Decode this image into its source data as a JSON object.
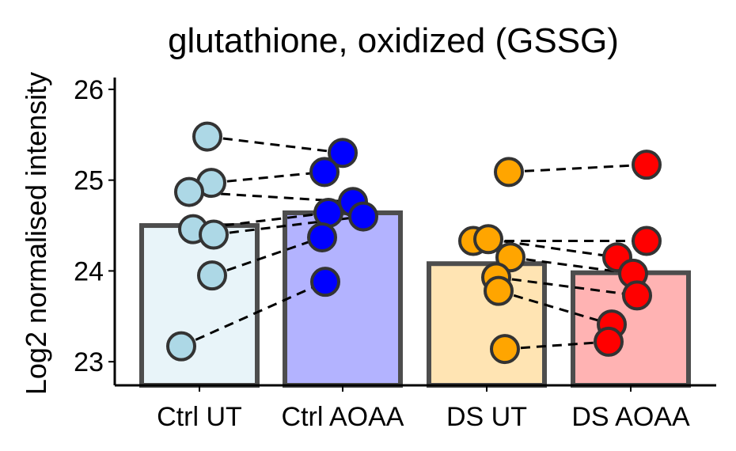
{
  "chart_data": {
    "type": "bar",
    "title": "glutathione, oxidized (GSSG)",
    "y_label": "Log2 normalised intensity",
    "categories": [
      "Ctrl UT",
      "Ctrl AOAA",
      "DS UT",
      "DS AOAA"
    ],
    "values": [
      24.5,
      24.64,
      24.08,
      23.98
    ],
    "bar_colors": [
      "#e8f4f9",
      "#b3b3ff",
      "#ffe4b3",
      "#ffb3b3"
    ],
    "point_colors": [
      "#add8e6",
      "#0000ff",
      "#ffa500",
      "#ff0000"
    ],
    "points": [
      [
        25.48,
        24.97,
        24.87,
        24.46,
        24.4,
        23.95,
        23.17
      ],
      [
        25.3,
        25.09,
        24.76,
        24.64,
        24.6,
        24.37,
        23.88
      ],
      [
        25.09,
        24.33,
        24.35,
        24.15,
        23.93,
        23.78,
        23.14
      ],
      [
        25.17,
        24.33,
        24.15,
        23.97,
        23.73,
        23.41,
        23.22
      ]
    ],
    "ylim": [
      22.74,
      26.13
    ],
    "yticks": [
      23,
      24,
      25,
      26
    ],
    "grid": false
  }
}
